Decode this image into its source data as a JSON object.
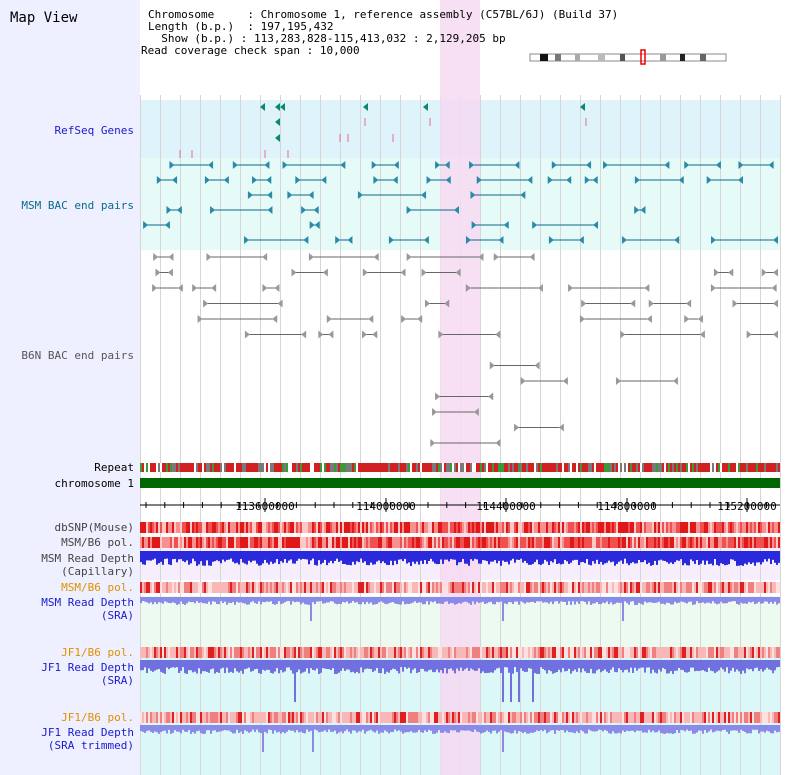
{
  "title": "Map View",
  "info": {
    "chromosome_label": "Chromosome",
    "chromosome_value": "Chromosome 1, reference assembly (C57BL/6J) (Build 37)",
    "length_label": "Length (b.p.)",
    "length_value": "197,195,432",
    "show_label": "Show (b.p.)",
    "show_value": "113,283,828-115,413,032 : 2,129,205 bp",
    "coverage_label": "Read coverage check span",
    "coverage_value": "10,000"
  },
  "tracks": {
    "refseq": "RefSeq Genes",
    "msm_bac": "MSM BAC end pairs",
    "b6n_bac": "B6N BAC end pairs",
    "repeat": "Repeat",
    "chromosome": "chromosome 1",
    "dbsnp": "dbSNP(Mouse)",
    "msm_b6_pol": "MSM/B6 pol.",
    "msm_depth_cap_1": "MSM Read Depth",
    "msm_depth_cap_2": "(Capillary)",
    "msm_b6_pol2": "MSM/B6 pol.",
    "msm_depth_sra_1": "MSM Read Depth",
    "msm_depth_sra_2": "(SRA)",
    "jf1_b6_pol": "JF1/B6 pol.",
    "jf1_depth_sra_1": "JF1 Read Depth",
    "jf1_depth_sra_2": "(SRA)",
    "jf1_b6_pol2": "JF1/B6 pol.",
    "jf1_depth_trim_1": "JF1 Read Depth",
    "jf1_depth_trim_2": "(SRA trimmed)"
  },
  "axis_ticks": [
    "113600000",
    "114000000",
    "114400000",
    "114800000",
    "115200000"
  ],
  "colors": {
    "sidebar": "#eef0ff",
    "refseq_bg": "#dff3fb",
    "msm_bac_bg": "#e6fbf8",
    "highlight": "#f6d9f2",
    "chromosome": "#006600",
    "label_blue": "#1a1acc",
    "label_teal": "#0a6a8a",
    "label_orange": "#e09000"
  }
}
